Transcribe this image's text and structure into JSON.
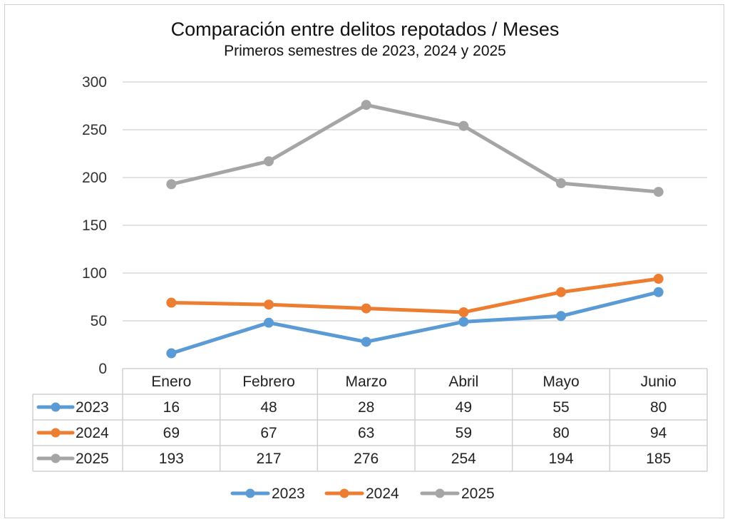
{
  "chart_data": {
    "type": "line",
    "title": "Comparación entre delitos repotados / Meses",
    "subtitle": "Primeros semestres de 2023, 2024 y 2025",
    "categories": [
      "Enero",
      "Febrero",
      "Marzo",
      "Abril",
      "Mayo",
      "Junio"
    ],
    "ylim": [
      0,
      300
    ],
    "yticks": [
      "0",
      "50",
      "100",
      "150",
      "200",
      "250",
      "300"
    ],
    "grid": true,
    "legend_position": "bottom",
    "data_table": true,
    "series": [
      {
        "name": "2023",
        "color": "#5b9bd5",
        "values": [
          16,
          48,
          28,
          49,
          55,
          80
        ]
      },
      {
        "name": "2024",
        "color": "#ed7d31",
        "values": [
          69,
          67,
          63,
          59,
          80,
          94
        ]
      },
      {
        "name": "2025",
        "color": "#a5a5a5",
        "values": [
          193,
          217,
          276,
          254,
          194,
          185
        ]
      }
    ]
  }
}
